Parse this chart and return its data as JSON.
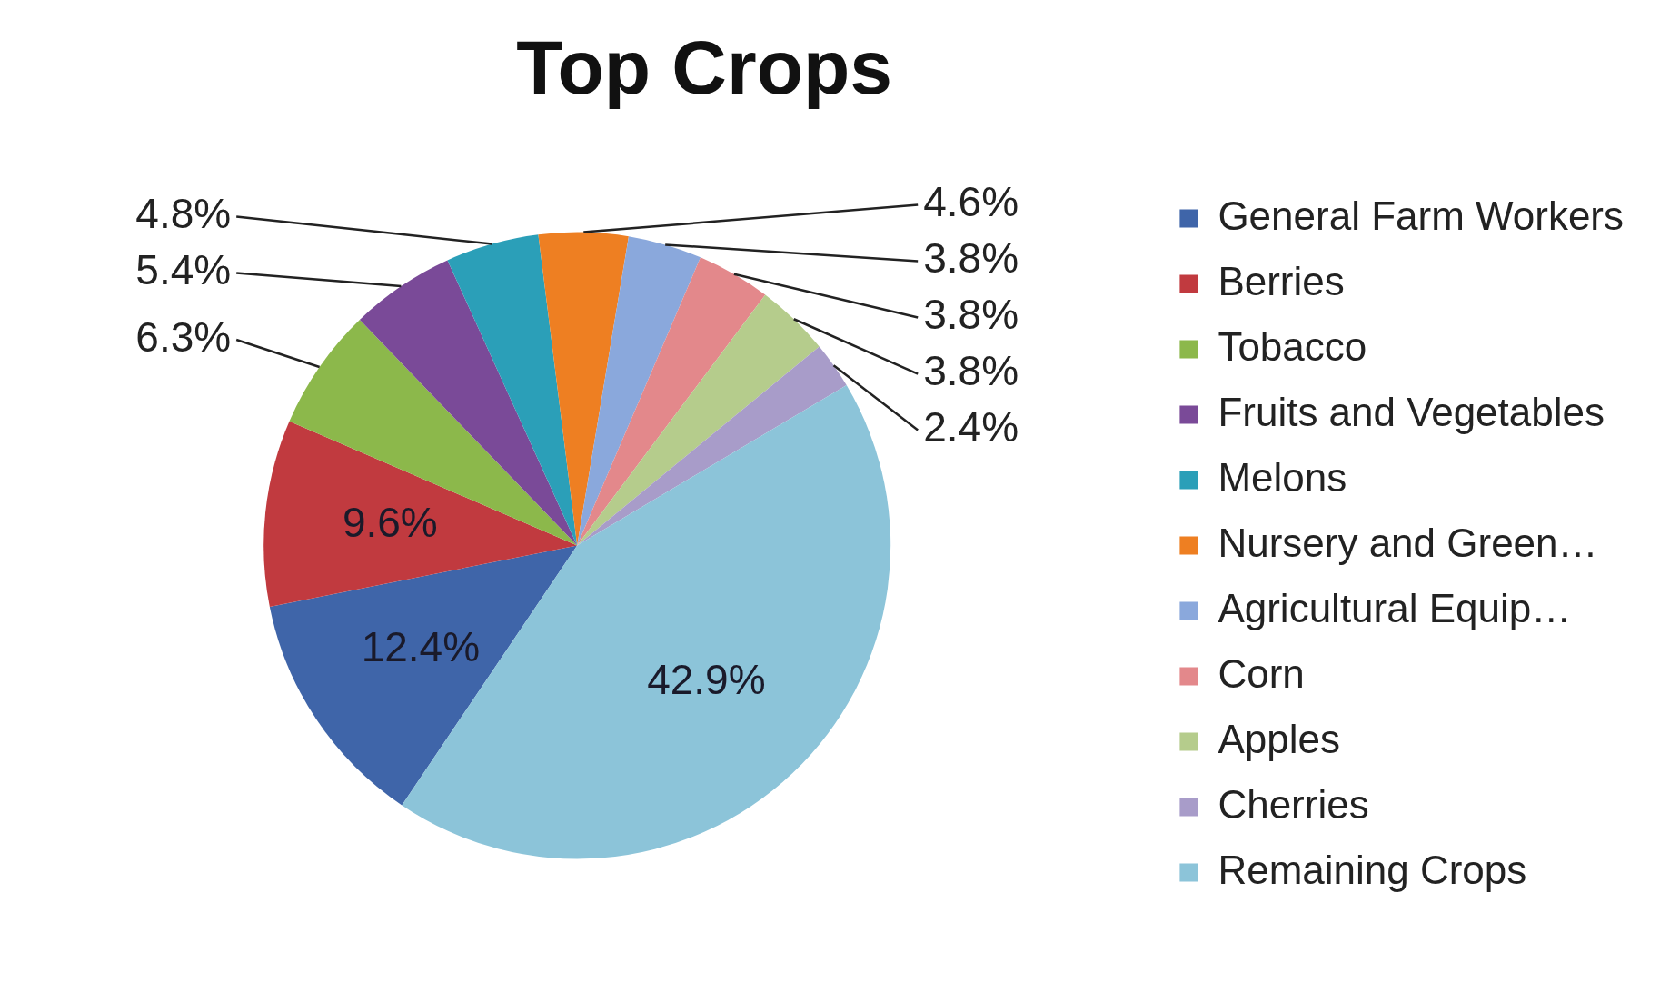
{
  "chart_data": {
    "type": "pie",
    "title": "Top Crops",
    "categories": [
      "General Farm Workers",
      "Berries",
      "Tobacco",
      "Fruits and Vegetables",
      "Melons",
      "Nursery and Green…",
      "Agricultural Equip…",
      "Corn",
      "Apples",
      "Cherries",
      "Remaining Crops"
    ],
    "values": [
      12.4,
      9.6,
      6.3,
      5.4,
      4.8,
      4.6,
      3.8,
      3.8,
      3.8,
      2.4,
      42.9
    ],
    "colors": [
      "#3f65a9",
      "#c13a3f",
      "#8cb84b",
      "#7a4a98",
      "#2b9fb8",
      "#ee7f22",
      "#8aa8dc",
      "#e3888b",
      "#b5cc8c",
      "#a89cc9",
      "#8cc4d9"
    ],
    "value_labels": [
      "12.4%",
      "9.6%",
      "6.3%",
      "5.4%",
      "4.8%",
      "4.6%",
      "3.8%",
      "3.8%",
      "3.8%",
      "2.4%",
      "42.9%"
    ],
    "legend": "right"
  }
}
